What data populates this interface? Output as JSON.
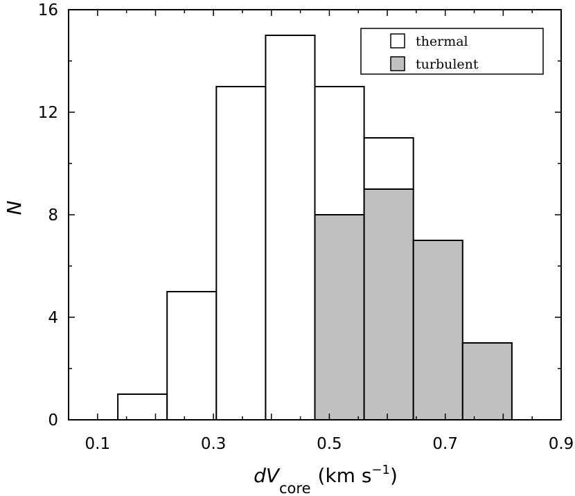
{
  "chart_data": {
    "type": "bar",
    "x_bin_edges": [
      0.135,
      0.22,
      0.305,
      0.39,
      0.475,
      0.56,
      0.645,
      0.73,
      0.815
    ],
    "series": [
      {
        "name": "thermal",
        "values": [
          1,
          5,
          13,
          15,
          5,
          2,
          0,
          0
        ],
        "color": "#ffffff"
      },
      {
        "name": "turbulent",
        "values": [
          0,
          0,
          0,
          0,
          8,
          9,
          7,
          3
        ],
        "color": "#c0c0c0"
      }
    ],
    "stacked": true,
    "xlim": [
      0.05,
      0.9
    ],
    "ylim": [
      0,
      16
    ],
    "x_ticks": [
      "0.1",
      "0.3",
      "0.5",
      "0.7",
      "0.9"
    ],
    "x_tick_values": [
      0.1,
      0.3,
      0.5,
      0.7,
      0.9
    ],
    "y_ticks": [
      "0",
      "4",
      "8",
      "12",
      "16"
    ],
    "y_tick_values": [
      0,
      4,
      8,
      12,
      16
    ],
    "xlabel": {
      "main": "dV",
      "sub": "core",
      "units_prefix": "(km s",
      "units_sup": "−1",
      "units_suffix": ")"
    },
    "ylabel": "N",
    "legend_position": "top-right",
    "grid": false
  }
}
